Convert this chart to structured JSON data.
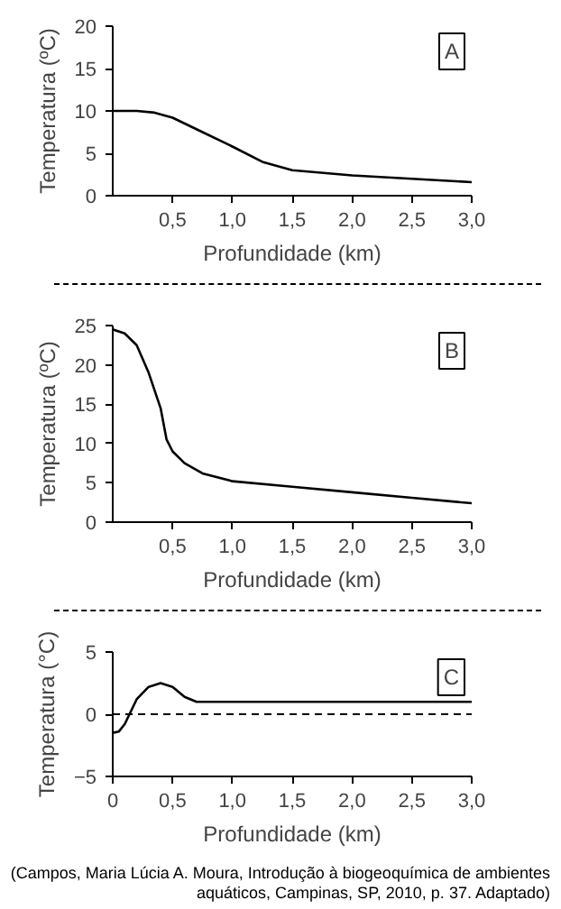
{
  "chart_data": [
    {
      "type": "line",
      "xlabel": "Profundidade (km)",
      "ylabel": "Temperatura (ºC)",
      "annotations": [
        "A"
      ],
      "grid": false,
      "xlim": [
        0,
        3
      ],
      "ylim": [
        0,
        20
      ],
      "xticks": [
        {
          "value": 0.5,
          "label": "0,5"
        },
        {
          "value": 1.0,
          "label": "1,0"
        },
        {
          "value": 1.5,
          "label": "1,5"
        },
        {
          "value": 2.0,
          "label": "2,0"
        },
        {
          "value": 2.5,
          "label": "2,5"
        },
        {
          "value": 3.0,
          "label": "3,0"
        }
      ],
      "yticks": [
        0,
        5,
        10,
        15,
        20
      ],
      "x": [
        0,
        0.2,
        0.35,
        0.5,
        0.75,
        1.0,
        1.25,
        1.5,
        2.0,
        2.5,
        3.0
      ],
      "series": [
        {
          "color": "#000000",
          "values": [
            10,
            10,
            9.8,
            9.2,
            7.5,
            5.8,
            4.0,
            3.0,
            2.4,
            2.0,
            1.6
          ]
        }
      ]
    },
    {
      "type": "line",
      "xlabel": "Profundidade (km)",
      "ylabel": "Temperatura (ºC)",
      "annotations": [
        "B"
      ],
      "grid": false,
      "xlim": [
        0,
        3
      ],
      "ylim": [
        0,
        25
      ],
      "xticks": [
        {
          "value": 0.5,
          "label": "0,5"
        },
        {
          "value": 1.0,
          "label": "1,0"
        },
        {
          "value": 1.5,
          "label": "1,5"
        },
        {
          "value": 2.0,
          "label": "2,0"
        },
        {
          "value": 2.5,
          "label": "2,5"
        },
        {
          "value": 3.0,
          "label": "3,0"
        }
      ],
      "yticks": [
        0,
        5,
        10,
        15,
        20,
        25
      ],
      "x": [
        0,
        0.1,
        0.2,
        0.3,
        0.4,
        0.45,
        0.5,
        0.6,
        0.75,
        1.0,
        1.5,
        2.0,
        2.5,
        3.0
      ],
      "series": [
        {
          "color": "#000000",
          "values": [
            24.5,
            24,
            22.5,
            19,
            14.5,
            10.5,
            9,
            7.5,
            6.2,
            5.2,
            4.5,
            3.8,
            3.1,
            2.4
          ]
        }
      ]
    },
    {
      "type": "line",
      "xlabel": "Profundidade (km)",
      "ylabel": "Temperatura (°C)",
      "annotations": [
        "C",
        "(Campos, Maria Lúcia A. Moura, Introdução à biogeoquímica de ambientes aquáticos, Campinas, SP, 2010, p. 37. Adaptado)"
      ],
      "grid": false,
      "xlim": [
        0,
        3
      ],
      "ylim": [
        -5,
        5
      ],
      "xticks": [
        0,
        {
          "value": 0.5,
          "label": "0,5"
        },
        {
          "value": 1.0,
          "label": "1,0"
        },
        {
          "value": 1.5,
          "label": "1,5"
        },
        {
          "value": 2.0,
          "label": "2,0"
        },
        {
          "value": 2.5,
          "label": "2,5"
        },
        {
          "value": 3.0,
          "label": "3,0"
        }
      ],
      "yticks": [
        {
          "value": -5,
          "label": "−5"
        },
        0,
        5
      ],
      "ref_lines": [
        {
          "axis": "y",
          "value": 0,
          "label": null,
          "color": "#000000",
          "line_style": "dashed"
        }
      ],
      "x": [
        0,
        0.05,
        0.1,
        0.2,
        0.3,
        0.4,
        0.5,
        0.6,
        0.7,
        3.0
      ],
      "series": [
        {
          "color": "#000000",
          "values": [
            -1.5,
            -1.4,
            -0.8,
            1.2,
            2.2,
            2.5,
            2.2,
            1.4,
            1.0,
            1.0
          ]
        }
      ]
    }
  ]
}
